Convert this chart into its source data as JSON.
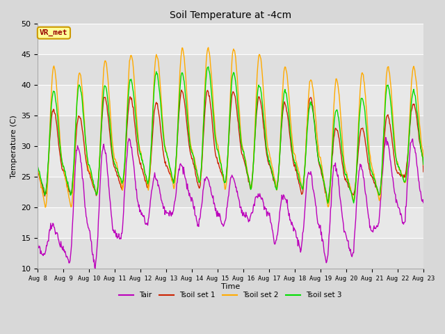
{
  "title": "Soil Temperature at -4cm",
  "xlabel": "Time",
  "ylabel": "Temperature (C)",
  "ylim": [
    10,
    50
  ],
  "background_color": "#d8d8d8",
  "plot_bg_color": "#e8e8e8",
  "grid_color": "#ffffff",
  "series": {
    "Tair": {
      "color": "#bb00bb",
      "lw": 1.0
    },
    "Tsoil set 1": {
      "color": "#cc2200",
      "lw": 1.0
    },
    "Tsoil set 2": {
      "color": "#ffaa00",
      "lw": 1.0
    },
    "Tsoil set 3": {
      "color": "#00dd00",
      "lw": 1.0
    }
  },
  "tick_labels": [
    "Aug 8",
    "Aug 9",
    "Aug 10",
    "Aug 11",
    "Aug 12",
    "Aug 13",
    "Aug 14",
    "Aug 15",
    "Aug 16",
    "Aug 17",
    "Aug 18",
    "Aug 19",
    "Aug 20",
    "Aug 21",
    "Aug 22",
    "Aug 23"
  ],
  "yticks": [
    10,
    15,
    20,
    25,
    30,
    35,
    40,
    45,
    50
  ],
  "annotation_text": "VR_met",
  "annotation_color": "#990000",
  "annotation_bg": "#ffff99",
  "annotation_border": "#cc9900"
}
